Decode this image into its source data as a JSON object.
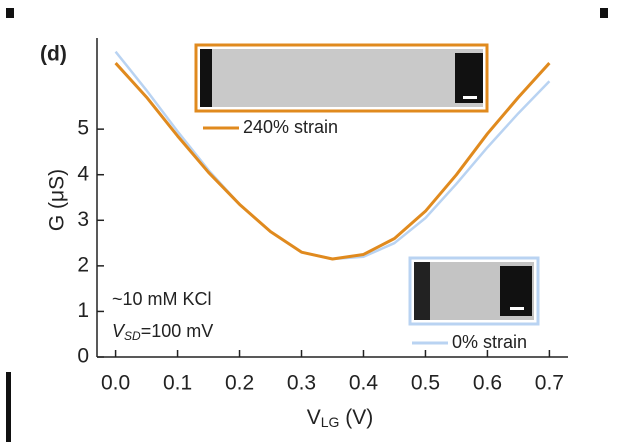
{
  "chart_data": {
    "type": "line",
    "panel_label": "(d)",
    "ylabel": "G (μS)",
    "xlabel": {
      "main": "V",
      "sub": "LG",
      "rest": " (V)"
    },
    "annotation_1": "~10 mM KCl",
    "annotation_2": {
      "main": "V",
      "sub": "SD",
      "rest": "=100 mV"
    },
    "x": [
      0.0,
      0.05,
      0.1,
      0.15,
      0.2,
      0.25,
      0.3,
      0.35,
      0.4,
      0.45,
      0.5,
      0.55,
      0.6,
      0.65,
      0.7
    ],
    "series": [
      {
        "name": "0% strain",
        "color": "#b9d3f2",
        "values": [
          6.7,
          5.85,
          4.95,
          4.1,
          3.35,
          2.75,
          2.3,
          2.15,
          2.2,
          2.5,
          3.05,
          3.8,
          4.6,
          5.35,
          6.05
        ]
      },
      {
        "name": "240% strain",
        "color": "#e08a1e",
        "values": [
          6.45,
          5.7,
          4.85,
          4.05,
          3.35,
          2.75,
          2.3,
          2.15,
          2.25,
          2.6,
          3.2,
          4.0,
          4.9,
          5.7,
          6.45
        ]
      }
    ],
    "xlim": [
      -0.03,
      0.73
    ],
    "ylim": [
      0,
      7
    ],
    "xticks": [
      {
        "value": 0,
        "label": "0.0"
      },
      0.1,
      0.2,
      0.3,
      0.4,
      0.5,
      0.6,
      0.7
    ],
    "yticks": [
      0,
      1,
      2,
      3,
      4,
      5
    ]
  }
}
